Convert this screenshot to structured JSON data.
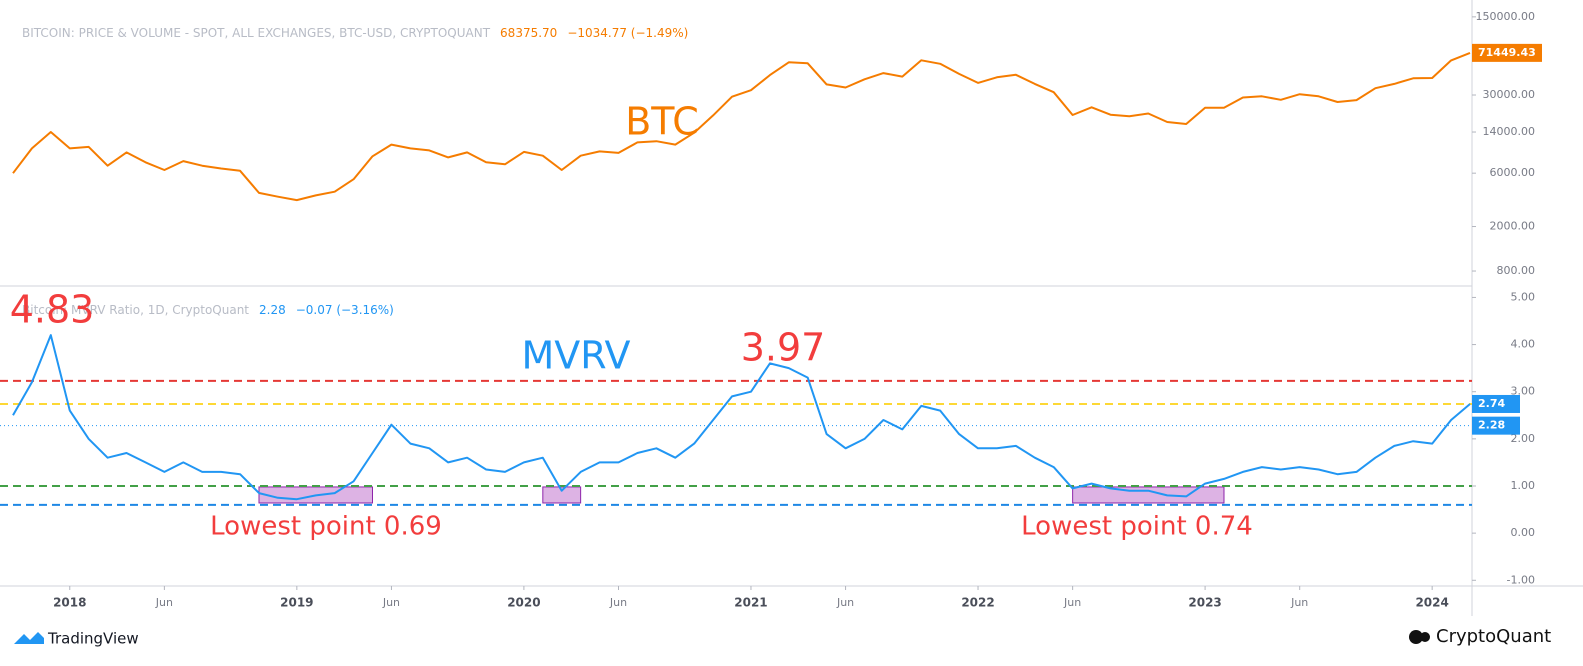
{
  "chart_data": [
    {
      "type": "line",
      "log_scale": true,
      "header": {
        "title": "BITCOIN: PRICE & VOLUME - SPOT, ALL EXCHANGES, BTC-USD, CRYPTOQUANT",
        "value": "68375.70",
        "change": "−1034.77 (−1.49%)"
      },
      "annotation": "BTC",
      "x": [
        "2017-10",
        "2017-11",
        "2017-12",
        "2018-01",
        "2018-02",
        "2018-03",
        "2018-04",
        "2018-05",
        "2018-06",
        "2018-07",
        "2018-08",
        "2018-09",
        "2018-10",
        "2018-11",
        "2018-12",
        "2019-01",
        "2019-02",
        "2019-03",
        "2019-04",
        "2019-05",
        "2019-06",
        "2019-07",
        "2019-08",
        "2019-09",
        "2019-10",
        "2019-11",
        "2019-12",
        "2020-01",
        "2020-02",
        "2020-03",
        "2020-04",
        "2020-05",
        "2020-06",
        "2020-07",
        "2020-08",
        "2020-09",
        "2020-10",
        "2020-11",
        "2020-12",
        "2021-01",
        "2021-02",
        "2021-03",
        "2021-04",
        "2021-05",
        "2021-06",
        "2021-07",
        "2021-08",
        "2021-09",
        "2021-10",
        "2021-11",
        "2021-12",
        "2022-01",
        "2022-02",
        "2022-03",
        "2022-04",
        "2022-05",
        "2022-06",
        "2022-07",
        "2022-08",
        "2022-09",
        "2022-10",
        "2022-11",
        "2022-12",
        "2023-01",
        "2023-02",
        "2023-03",
        "2023-04",
        "2023-05",
        "2023-06",
        "2023-07",
        "2023-08",
        "2023-09",
        "2023-10",
        "2023-11",
        "2023-12",
        "2024-01",
        "2024-02",
        "2024-03"
      ],
      "xlim": [
        "2017-10",
        "2024-03"
      ],
      "series": [
        {
          "name": "BTC",
          "color": "#f57c00",
          "values": [
            6000,
            10000,
            14000,
            10000,
            10300,
            7000,
            9200,
            7500,
            6400,
            7700,
            7000,
            6600,
            6300,
            4000,
            3700,
            3450,
            3800,
            4100,
            5300,
            8500,
            10800,
            10000,
            9600,
            8300,
            9200,
            7500,
            7200,
            9300,
            8600,
            6400,
            8600,
            9400,
            9100,
            11300,
            11600,
            10800,
            13800,
            19700,
            29000,
            33100,
            45200,
            58800,
            57700,
            37300,
            35000,
            41500,
            47100,
            43800,
            61300,
            57000,
            46300,
            38500,
            43200,
            45500,
            37700,
            31800,
            19900,
            23300,
            20000,
            19400,
            20500,
            17200,
            16500,
            23100,
            23100,
            28500,
            29200,
            27200,
            30500,
            29200,
            26000,
            27000,
            34500,
            37700,
            42300,
            42600,
            61200,
            71449.43
          ]
        }
      ],
      "ylim": [
        600,
        180000
      ],
      "yticks": [
        {
          "value": 800,
          "label": "800.00"
        },
        {
          "value": 2000,
          "label": "2000.00"
        },
        {
          "value": 6000,
          "label": "6000.00"
        },
        {
          "value": 14000,
          "label": "14000.00"
        },
        {
          "value": 30000,
          "label": "30000.00"
        },
        {
          "value": 150000,
          "label": "150000.00"
        }
      ],
      "axis_labels": [
        {
          "value": 71449.43,
          "label": "71449.43",
          "color": "#f57c00"
        }
      ]
    },
    {
      "type": "line",
      "header": {
        "title": "Bitcoin: MVRV Ratio, 1D, CryptoQuant",
        "value": "2.28",
        "change": "−0.07 (−3.16%)"
      },
      "annotations": [
        "MVRV",
        "4.83",
        "3.97",
        "Lowest point 0.69",
        "Lowest point 0.74"
      ],
      "x": [
        "2017-10",
        "2017-11",
        "2017-12",
        "2018-01",
        "2018-02",
        "2018-03",
        "2018-04",
        "2018-05",
        "2018-06",
        "2018-07",
        "2018-08",
        "2018-09",
        "2018-10",
        "2018-11",
        "2018-12",
        "2019-01",
        "2019-02",
        "2019-03",
        "2019-04",
        "2019-05",
        "2019-06",
        "2019-07",
        "2019-08",
        "2019-09",
        "2019-10",
        "2019-11",
        "2019-12",
        "2020-01",
        "2020-02",
        "2020-03",
        "2020-04",
        "2020-05",
        "2020-06",
        "2020-07",
        "2020-08",
        "2020-09",
        "2020-10",
        "2020-11",
        "2020-12",
        "2021-01",
        "2021-02",
        "2021-03",
        "2021-04",
        "2021-05",
        "2021-06",
        "2021-07",
        "2021-08",
        "2021-09",
        "2021-10",
        "2021-11",
        "2021-12",
        "2022-01",
        "2022-02",
        "2022-03",
        "2022-04",
        "2022-05",
        "2022-06",
        "2022-07",
        "2022-08",
        "2022-09",
        "2022-10",
        "2022-11",
        "2022-12",
        "2023-01",
        "2023-02",
        "2023-03",
        "2023-04",
        "2023-05",
        "2023-06",
        "2023-07",
        "2023-08",
        "2023-09",
        "2023-10",
        "2023-11",
        "2023-12",
        "2024-01",
        "2024-02",
        "2024-03"
      ],
      "xlim": [
        "2017-10",
        "2024-03"
      ],
      "xticks": [
        {
          "value": "2018-01",
          "label": "2018"
        },
        {
          "value": "2018-06",
          "label": "Jun"
        },
        {
          "value": "2019-01",
          "label": "2019"
        },
        {
          "value": "2019-06",
          "label": "Jun"
        },
        {
          "value": "2020-01",
          "label": "2020"
        },
        {
          "value": "2020-06",
          "label": "Jun"
        },
        {
          "value": "2021-01",
          "label": "2021"
        },
        {
          "value": "2021-06",
          "label": "Jun"
        },
        {
          "value": "2022-01",
          "label": "2022"
        },
        {
          "value": "2022-06",
          "label": "Jun"
        },
        {
          "value": "2023-01",
          "label": "2023"
        },
        {
          "value": "2023-06",
          "label": "Jun"
        },
        {
          "value": "2024-01",
          "label": "2024"
        }
      ],
      "series": [
        {
          "name": "MVRV",
          "color": "#2196f3",
          "values": [
            2.5,
            3.2,
            4.2,
            2.6,
            2.0,
            1.6,
            1.7,
            1.5,
            1.3,
            1.5,
            1.3,
            1.3,
            1.25,
            0.85,
            0.75,
            0.72,
            0.8,
            0.85,
            1.1,
            1.7,
            2.3,
            1.9,
            1.8,
            1.5,
            1.6,
            1.35,
            1.3,
            1.5,
            1.6,
            0.9,
            1.3,
            1.5,
            1.5,
            1.7,
            1.8,
            1.6,
            1.9,
            2.4,
            2.9,
            3.0,
            3.6,
            3.5,
            3.3,
            2.1,
            1.8,
            2.0,
            2.4,
            2.2,
            2.7,
            2.6,
            2.1,
            1.8,
            1.8,
            1.85,
            1.6,
            1.4,
            0.95,
            1.05,
            0.95,
            0.9,
            0.9,
            0.8,
            0.78,
            1.05,
            1.15,
            1.3,
            1.4,
            1.35,
            1.4,
            1.35,
            1.25,
            1.3,
            1.6,
            1.85,
            1.95,
            1.9,
            2.4,
            2.74
          ]
        }
      ],
      "ylim": [
        -1.1,
        5.2
      ],
      "yticks": [
        {
          "value": -1,
          "label": "-1.00"
        },
        {
          "value": 0,
          "label": "0.00"
        },
        {
          "value": 1,
          "label": "1.00"
        },
        {
          "value": 2,
          "label": "2.00"
        },
        {
          "value": 3,
          "label": "3.00"
        },
        {
          "value": 4,
          "label": "4.00"
        },
        {
          "value": 5,
          "label": "5.00"
        }
      ],
      "reference_lines": [
        {
          "value": 3.23,
          "color": "#e53935"
        },
        {
          "value": 2.74,
          "color": "#fdd835"
        },
        {
          "value": 1.0,
          "color": "#43a047"
        },
        {
          "value": 0.6,
          "color": "#1e88e5"
        }
      ],
      "axis_labels": [
        {
          "value": 2.74,
          "label": "2.74",
          "color": "#2196f3"
        },
        {
          "value": 2.28,
          "label": "2.28",
          "color": "#2196f3",
          "style": "dotted"
        }
      ],
      "highlights": [
        {
          "x": [
            "2018-11",
            "2019-04"
          ],
          "y": [
            0.64,
            0.98
          ]
        },
        {
          "x": [
            "2020-02",
            "2020-03"
          ],
          "y": [
            0.64,
            0.98
          ]
        },
        {
          "x": [
            "2022-06",
            "2023-01"
          ],
          "y": [
            0.64,
            0.98
          ]
        }
      ],
      "highlight_color": "#ce93d8"
    }
  ],
  "footer": {
    "left": "TradingView",
    "right": "CryptoQuant"
  }
}
